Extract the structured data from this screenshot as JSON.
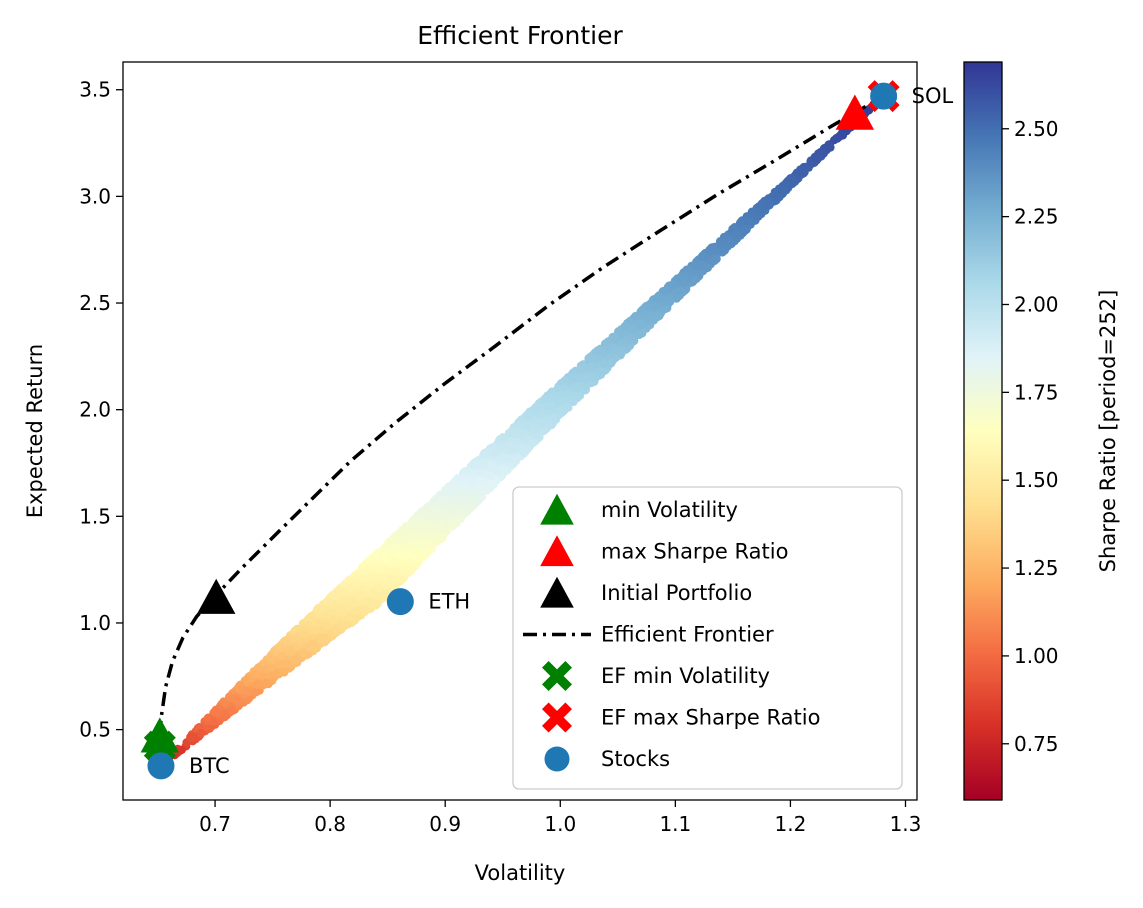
{
  "chart_data": {
    "type": "scatter",
    "title": "Efficient Frontier",
    "xlabel": "Volatility",
    "ylabel": "Expected Return",
    "xlim": [
      0.62,
      1.31
    ],
    "ylim": [
      0.17,
      3.63
    ],
    "x_ticks": [
      "0.7",
      "0.8",
      "0.9",
      "1.0",
      "1.1",
      "1.2",
      "1.3"
    ],
    "y_ticks": [
      "0.5",
      "1.0",
      "1.5",
      "2.0",
      "2.5",
      "3.0",
      "3.5"
    ],
    "grid": false,
    "legend_position": "lower-right",
    "colorbar": {
      "label": "Sharpe Ratio [period=252]",
      "range": [
        0.59,
        2.69
      ],
      "ticks": [
        "0.75",
        "1.00",
        "1.25",
        "1.50",
        "1.75",
        "2.00",
        "2.25",
        "2.50"
      ],
      "colormap": "RdYlBu"
    },
    "legend": [
      {
        "label": "min Volatility",
        "marker": "triangle",
        "color": "#008000"
      },
      {
        "label": "max Sharpe Ratio",
        "marker": "triangle",
        "color": "#ff0000"
      },
      {
        "label": "Initial Portfolio",
        "marker": "triangle",
        "color": "#000000"
      },
      {
        "label": "Efficient Frontier",
        "marker": "dashdot-line",
        "color": "#000000"
      },
      {
        "label": "EF min Volatility",
        "marker": "x",
        "color": "#008000"
      },
      {
        "label": "EF max Sharpe Ratio",
        "marker": "x",
        "color": "#ff0000"
      },
      {
        "label": "Stocks",
        "marker": "circle",
        "color": "#1f77b4"
      }
    ],
    "stocks": [
      {
        "name": "BTC",
        "x": 0.653,
        "y": 0.33
      },
      {
        "name": "ETH",
        "x": 0.861,
        "y": 1.1
      },
      {
        "name": "SOL",
        "x": 1.281,
        "y": 3.47
      }
    ],
    "min_volatility": {
      "x": 0.652,
      "y": 0.46
    },
    "max_sharpe_ratio": {
      "x": 1.256,
      "y": 3.38
    },
    "initial_portfolio": {
      "x": 0.701,
      "y": 1.11
    },
    "ef_min_volatility": {
      "x": 0.652,
      "y": 0.42
    },
    "ef_max_sharpe_ratio": {
      "x": 1.281,
      "y": 3.47
    },
    "efficient_frontier": {
      "x": [
        0.654,
        0.652,
        0.653,
        0.657,
        0.663,
        0.672,
        0.684,
        0.699,
        0.722,
        0.75,
        0.782,
        0.818,
        0.857,
        0.899,
        0.944,
        0.99,
        1.038,
        1.087,
        1.137,
        1.187,
        1.236,
        1.281
      ],
      "y": [
        0.34,
        0.42,
        0.55,
        0.7,
        0.82,
        0.93,
        1.03,
        1.12,
        1.25,
        1.4,
        1.57,
        1.76,
        1.94,
        2.12,
        2.3,
        2.49,
        2.67,
        2.84,
        3.01,
        3.17,
        3.33,
        3.47
      ]
    },
    "random_portfolios": {
      "count": 5000,
      "sharpe_range": [
        0.6,
        2.69
      ]
    }
  }
}
